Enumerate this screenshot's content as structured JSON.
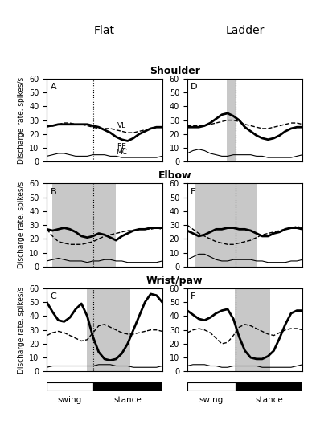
{
  "figure": {
    "columns": [
      "Flat",
      "Ladder"
    ],
    "rows": [
      "Shoulder",
      "Elbow",
      "Wrist/paw"
    ],
    "phase_bar": [
      "swing",
      "stance"
    ]
  },
  "chart_data": [
    {
      "type": "line",
      "annotations": [
        "A"
      ],
      "ylabel": "Discharge rate, spikes/s",
      "x": [
        0,
        0.05,
        0.1,
        0.15,
        0.2,
        0.25,
        0.3,
        0.35,
        0.4,
        0.45,
        0.5,
        0.55,
        0.6,
        0.65,
        0.7,
        0.75,
        0.8,
        0.85,
        0.9,
        0.95,
        1
      ],
      "xlim": [
        0,
        1
      ],
      "ylim": [
        0,
        60
      ],
      "yticks": [
        0,
        10,
        20,
        30,
        40,
        50,
        60
      ],
      "tick_labels": "y",
      "phase_change": 0.4,
      "series": [
        {
          "name": "VL",
          "color": "black",
          "line_style": "dashed",
          "values": [
            25,
            26,
            27,
            28,
            28,
            27,
            27,
            26,
            25,
            24,
            24,
            24,
            23,
            22,
            21,
            21,
            22,
            23,
            24,
            25,
            25
          ]
        },
        {
          "name": "RE",
          "color": "black",
          "line_style": "solid",
          "values": [
            26,
            26,
            27,
            27,
            27,
            27,
            27,
            27,
            26,
            25,
            23,
            21,
            18,
            16,
            15,
            17,
            20,
            22,
            24,
            25,
            25
          ]
        },
        {
          "name": "MC",
          "color": "black",
          "line_style": "solid",
          "values": [
            4,
            5,
            6,
            6,
            5,
            4,
            4,
            4,
            5,
            5,
            5,
            4,
            4,
            3,
            3,
            3,
            3,
            3,
            3,
            3,
            4
          ]
        }
      ]
    },
    {
      "type": "line",
      "annotations": [
        "D"
      ],
      "x": [
        0,
        0.05,
        0.1,
        0.15,
        0.2,
        0.25,
        0.3,
        0.35,
        0.4,
        0.45,
        0.5,
        0.55,
        0.6,
        0.65,
        0.7,
        0.75,
        0.8,
        0.85,
        0.9,
        0.95,
        1
      ],
      "xlim": [
        0,
        1
      ],
      "ylim": [
        0,
        60
      ],
      "yticks": [
        0,
        10,
        20,
        30,
        40,
        50,
        60
      ],
      "tick_labels": "y",
      "phase_change": 0.42,
      "shaded": [
        0.34,
        0.42
      ],
      "series": [
        {
          "color": "black",
          "line_style": "dashed",
          "values": [
            26,
            26,
            26,
            26,
            27,
            28,
            29,
            30,
            30,
            29,
            27,
            26,
            25,
            24,
            24,
            25,
            26,
            27,
            28,
            28,
            27
          ]
        },
        {
          "color": "black",
          "line_style": "solid",
          "values": [
            25,
            25,
            25,
            26,
            28,
            31,
            34,
            35,
            33,
            30,
            25,
            22,
            19,
            17,
            16,
            17,
            19,
            22,
            24,
            25,
            25
          ]
        },
        {
          "color": "black",
          "line_style": "solid",
          "values": [
            6,
            8,
            9,
            8,
            6,
            5,
            4,
            4,
            5,
            5,
            5,
            5,
            4,
            4,
            3,
            3,
            3,
            3,
            3,
            4,
            5
          ]
        }
      ]
    },
    {
      "type": "line",
      "annotations": [
        "B"
      ],
      "ylabel": "Discharge rate, spikes/s",
      "x": [
        0,
        0.05,
        0.1,
        0.15,
        0.2,
        0.25,
        0.3,
        0.35,
        0.4,
        0.45,
        0.5,
        0.55,
        0.6,
        0.65,
        0.7,
        0.75,
        0.8,
        0.85,
        0.9,
        0.95,
        1
      ],
      "xlim": [
        0,
        1
      ],
      "ylim": [
        0,
        60
      ],
      "yticks": [
        0,
        10,
        20,
        30,
        40,
        50,
        60
      ],
      "tick_labels": "y",
      "phase_change": 0.4,
      "shaded": [
        0.05,
        0.6
      ],
      "series": [
        {
          "color": "black",
          "line_style": "dashed",
          "values": [
            27,
            22,
            18,
            17,
            16,
            16,
            16,
            17,
            18,
            20,
            22,
            23,
            24,
            25,
            26,
            26,
            27,
            27,
            27,
            28,
            27
          ]
        },
        {
          "color": "black",
          "line_style": "solid",
          "values": [
            27,
            26,
            27,
            28,
            27,
            25,
            22,
            21,
            22,
            24,
            23,
            21,
            19,
            22,
            24,
            26,
            27,
            27,
            28,
            28,
            28
          ]
        },
        {
          "color": "black",
          "line_style": "solid",
          "values": [
            4,
            5,
            6,
            5,
            4,
            4,
            4,
            3,
            4,
            4,
            5,
            5,
            4,
            4,
            3,
            3,
            3,
            3,
            3,
            3,
            4
          ]
        }
      ]
    },
    {
      "type": "line",
      "annotations": [
        "E"
      ],
      "x": [
        0,
        0.05,
        0.1,
        0.15,
        0.2,
        0.25,
        0.3,
        0.35,
        0.4,
        0.45,
        0.5,
        0.55,
        0.6,
        0.65,
        0.7,
        0.75,
        0.8,
        0.85,
        0.9,
        0.95,
        1
      ],
      "xlim": [
        0,
        1
      ],
      "ylim": [
        0,
        60
      ],
      "yticks": [
        0,
        10,
        20,
        30,
        40,
        50,
        60
      ],
      "tick_labels": "y",
      "phase_change": 0.42,
      "shaded": [
        0.07,
        0.6
      ],
      "series": [
        {
          "color": "black",
          "line_style": "dashed",
          "values": [
            30,
            27,
            24,
            22,
            20,
            18,
            17,
            16,
            16,
            17,
            18,
            19,
            21,
            23,
            24,
            25,
            26,
            27,
            28,
            29,
            28
          ]
        },
        {
          "color": "black",
          "line_style": "solid",
          "values": [
            26,
            24,
            22,
            23,
            25,
            27,
            27,
            28,
            28,
            27,
            27,
            26,
            24,
            22,
            22,
            24,
            25,
            27,
            28,
            28,
            27
          ]
        },
        {
          "color": "black",
          "line_style": "solid",
          "values": [
            5,
            7,
            9,
            9,
            7,
            5,
            4,
            4,
            5,
            5,
            5,
            5,
            4,
            4,
            3,
            3,
            3,
            3,
            4,
            4,
            5
          ]
        }
      ]
    },
    {
      "type": "line",
      "annotations": [
        "C"
      ],
      "ylabel": "Discharge rate, spikes/s",
      "x": [
        0,
        0.05,
        0.1,
        0.15,
        0.2,
        0.25,
        0.3,
        0.35,
        0.4,
        0.45,
        0.5,
        0.55,
        0.6,
        0.65,
        0.7,
        0.75,
        0.8,
        0.85,
        0.9,
        0.95,
        1
      ],
      "xlim": [
        0,
        1
      ],
      "ylim": [
        0,
        60
      ],
      "yticks": [
        0,
        10,
        20,
        30,
        40,
        50,
        60
      ],
      "tick_labels": "y",
      "phase_change": 0.4,
      "shaded": [
        0.35,
        0.72
      ],
      "series": [
        {
          "color": "black",
          "line_style": "dashed",
          "values": [
            26,
            28,
            29,
            28,
            26,
            24,
            22,
            23,
            28,
            33,
            34,
            32,
            30,
            28,
            27,
            27,
            28,
            29,
            30,
            30,
            29
          ]
        },
        {
          "color": "black",
          "line_style": "solid",
          "values": [
            50,
            43,
            37,
            36,
            39,
            45,
            49,
            40,
            25,
            14,
            9,
            8,
            9,
            13,
            20,
            30,
            40,
            50,
            56,
            55,
            50
          ]
        },
        {
          "color": "black",
          "line_style": "solid",
          "values": [
            3,
            4,
            4,
            4,
            4,
            4,
            4,
            4,
            4,
            5,
            5,
            5,
            4,
            4,
            4,
            3,
            3,
            3,
            3,
            3,
            4
          ]
        }
      ]
    },
    {
      "type": "line",
      "annotations": [
        "F"
      ],
      "x": [
        0,
        0.05,
        0.1,
        0.15,
        0.2,
        0.25,
        0.3,
        0.35,
        0.4,
        0.45,
        0.5,
        0.55,
        0.6,
        0.65,
        0.7,
        0.75,
        0.8,
        0.85,
        0.9,
        0.95,
        1
      ],
      "xlim": [
        0,
        1
      ],
      "ylim": [
        0,
        60
      ],
      "yticks": [
        0,
        10,
        20,
        30,
        40,
        50,
        60
      ],
      "tick_labels": "y",
      "phase_change": 0.42,
      "shaded": [
        0.41,
        0.72
      ],
      "series": [
        {
          "color": "black",
          "line_style": "dashed",
          "values": [
            28,
            30,
            31,
            30,
            28,
            24,
            20,
            21,
            26,
            32,
            34,
            33,
            31,
            29,
            27,
            26,
            28,
            30,
            31,
            31,
            30
          ]
        },
        {
          "color": "black",
          "line_style": "solid",
          "values": [
            44,
            41,
            38,
            37,
            39,
            42,
            44,
            45,
            38,
            25,
            15,
            10,
            9,
            9,
            11,
            15,
            24,
            34,
            42,
            44,
            44
          ]
        },
        {
          "color": "black",
          "line_style": "solid",
          "values": [
            4,
            5,
            5,
            5,
            4,
            4,
            3,
            3,
            4,
            4,
            4,
            4,
            4,
            3,
            3,
            3,
            3,
            3,
            3,
            4,
            5
          ]
        }
      ]
    }
  ]
}
